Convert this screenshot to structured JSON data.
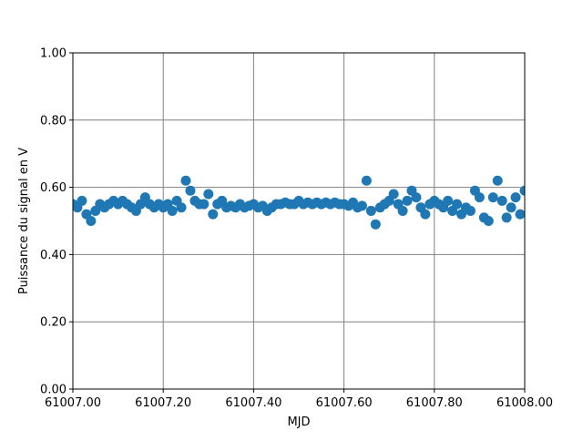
{
  "chart_data": {
    "type": "scatter",
    "x_label": "MJD",
    "y_label": "Puissance du signal en V",
    "color": "#1f77b4",
    "grid": true,
    "xlim": [
      61007,
      61008
    ],
    "ylim": [
      0,
      1
    ],
    "xticks": [
      {
        "value": 61007.0,
        "label": "61007.00"
      },
      {
        "value": 61007.2,
        "label": "61007.20"
      },
      {
        "value": 61007.4,
        "label": "61007.40"
      },
      {
        "value": 61007.6,
        "label": "61007.60"
      },
      {
        "value": 61007.8,
        "label": "61007.80"
      },
      {
        "value": 61008.0,
        "label": "61008.00"
      }
    ],
    "yticks": [
      {
        "value": 0,
        "label": "0.00"
      },
      {
        "value": 0.2,
        "label": "0.20"
      },
      {
        "value": 0.4,
        "label": "0.40"
      },
      {
        "value": 0.6,
        "label": "0.60"
      },
      {
        "value": 0.8,
        "label": "0.80"
      },
      {
        "value": 1,
        "label": "1.00"
      }
    ],
    "x": [
      61007.0,
      61007.01,
      61007.02,
      61007.03,
      61007.04,
      61007.05,
      61007.06,
      61007.07,
      61007.08,
      61007.09,
      61007.1,
      61007.11,
      61007.12,
      61007.13,
      61007.14,
      61007.15,
      61007.16,
      61007.17,
      61007.18,
      61007.19,
      61007.2,
      61007.21,
      61007.22,
      61007.23,
      61007.24,
      61007.25,
      61007.26,
      61007.27,
      61007.28,
      61007.29,
      61007.3,
      61007.31,
      61007.32,
      61007.33,
      61007.34,
      61007.35,
      61007.36,
      61007.37,
      61007.38,
      61007.39,
      61007.4,
      61007.41,
      61007.42,
      61007.43,
      61007.44,
      61007.45,
      61007.46,
      61007.47,
      61007.48,
      61007.49,
      61007.5,
      61007.51,
      61007.52,
      61007.53,
      61007.54,
      61007.55,
      61007.56,
      61007.57,
      61007.58,
      61007.59,
      61007.6,
      61007.61,
      61007.62,
      61007.63,
      61007.64,
      61007.65,
      61007.66,
      61007.67,
      61007.68,
      61007.69,
      61007.7,
      61007.71,
      61007.72,
      61007.73,
      61007.74,
      61007.75,
      61007.76,
      61007.77,
      61007.78,
      61007.79,
      61007.8,
      61007.81,
      61007.82,
      61007.83,
      61007.84,
      61007.85,
      61007.86,
      61007.87,
      61007.88,
      61007.89,
      61007.9,
      61007.91,
      61007.92,
      61007.93,
      61007.94,
      61007.95,
      61007.96,
      61007.97,
      61007.98,
      61007.99,
      61008.0
    ],
    "values": [
      0.55,
      0.54,
      0.56,
      0.52,
      0.5,
      0.53,
      0.55,
      0.54,
      0.55,
      0.56,
      0.55,
      0.56,
      0.55,
      0.54,
      0.53,
      0.55,
      0.57,
      0.55,
      0.54,
      0.55,
      0.54,
      0.55,
      0.53,
      0.56,
      0.54,
      0.62,
      0.59,
      0.56,
      0.55,
      0.55,
      0.58,
      0.52,
      0.55,
      0.56,
      0.54,
      0.545,
      0.54,
      0.55,
      0.54,
      0.545,
      0.55,
      0.54,
      0.545,
      0.53,
      0.54,
      0.55,
      0.55,
      0.555,
      0.55,
      0.55,
      0.56,
      0.55,
      0.555,
      0.55,
      0.555,
      0.55,
      0.555,
      0.55,
      0.555,
      0.55,
      0.55,
      0.545,
      0.555,
      0.54,
      0.545,
      0.62,
      0.53,
      0.49,
      0.54,
      0.55,
      0.56,
      0.58,
      0.55,
      0.53,
      0.56,
      0.59,
      0.57,
      0.54,
      0.52,
      0.55,
      0.56,
      0.55,
      0.54,
      0.56,
      0.53,
      0.55,
      0.52,
      0.54,
      0.53,
      0.59,
      0.57,
      0.51,
      0.5,
      0.57,
      0.62,
      0.56,
      0.51,
      0.54,
      0.57,
      0.52,
      0.59
    ]
  }
}
